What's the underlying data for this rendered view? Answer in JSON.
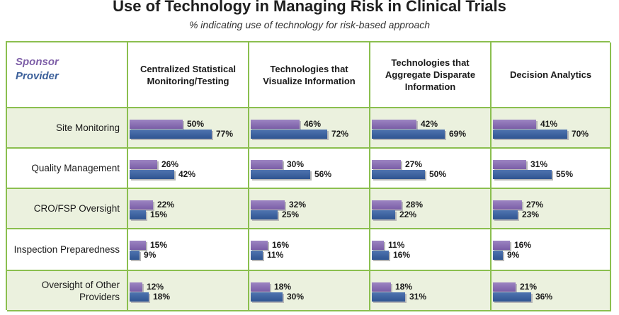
{
  "title": "Use of Technology in Managing Risk in Clinical Trials",
  "subtitle": "% indicating use of technology for risk-based approach",
  "corner": {
    "sponsor": "Sponsor",
    "provider": "Provider"
  },
  "colors": {
    "sponsor": "#7a5da6",
    "provider": "#2f5491",
    "grid": "#8bbf4f",
    "shade": "#ebf1de"
  },
  "chart_data": {
    "type": "bar",
    "title": "Use of Technology in Managing Risk in Clinical Trials",
    "subtitle": "% indicating use of technology for risk-based approach",
    "unit": "%",
    "columns": [
      "Centralized Statistical Monitoring/Testing",
      "Technologies that Visualize Information",
      "Technologies that Aggregate Disparate Information",
      "Decision Analytics"
    ],
    "rows": [
      "Site Monitoring",
      "Quality Management",
      "CRO/FSP Oversight",
      "Inspection Preparedness",
      "Oversight of Other Providers"
    ],
    "series": [
      {
        "name": "Sponsor",
        "values": [
          [
            50,
            46,
            42,
            41
          ],
          [
            26,
            30,
            27,
            31
          ],
          [
            22,
            32,
            28,
            27
          ],
          [
            15,
            16,
            11,
            16
          ],
          [
            12,
            18,
            18,
            21
          ]
        ]
      },
      {
        "name": "Provider",
        "values": [
          [
            77,
            72,
            69,
            70
          ],
          [
            42,
            56,
            50,
            55
          ],
          [
            15,
            25,
            22,
            23
          ],
          [
            9,
            11,
            16,
            9
          ],
          [
            18,
            30,
            31,
            36
          ]
        ]
      }
    ]
  }
}
